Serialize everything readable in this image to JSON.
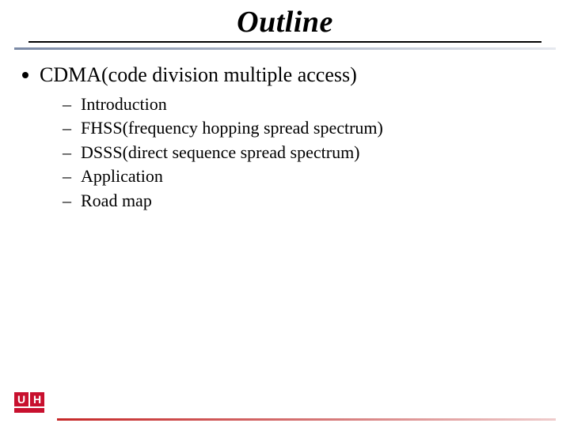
{
  "title": "Outline",
  "colors": {
    "text": "#000000",
    "background": "#ffffff",
    "top_rule_gradient": [
      "#7b8aa6",
      "#b8c0cf",
      "#e6e9ef"
    ],
    "footer_rule_gradient": [
      "#c62828",
      "#d67a7a",
      "#efcccc"
    ],
    "logo_red": "#c8102e"
  },
  "typography": {
    "title_fontsize_pt": 28,
    "title_style": "italic bold",
    "l1_fontsize_pt": 20,
    "l2_fontsize_pt": 17,
    "font_family": "Times New Roman"
  },
  "content": {
    "l1": {
      "text": "CDMA(code division multiple access)",
      "children": [
        {
          "text": "Introduction"
        },
        {
          "text": "FHSS(frequency hopping spread spectrum)"
        },
        {
          "text": "DSSS(direct sequence spread spectrum)"
        },
        {
          "text": "Application"
        },
        {
          "text": "Road map"
        }
      ]
    }
  },
  "logo": {
    "letters": [
      "U",
      "H"
    ]
  }
}
